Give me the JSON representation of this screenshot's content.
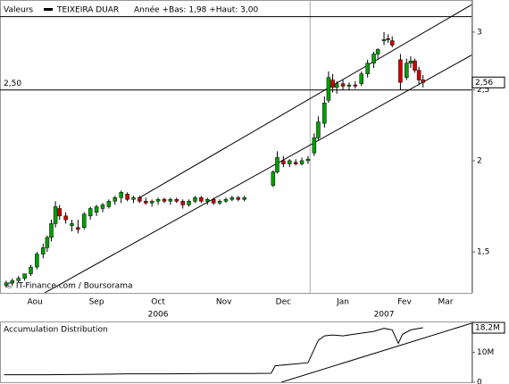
{
  "chart_data": [
    {
      "type": "candlestick",
      "title": "Valeurs",
      "subtitle": "Année +Bas: 1,98 +Haut: 3,00",
      "credit": "© IT-Finance.com / Boursorama",
      "log_y": true,
      "up_color": "#00a000",
      "down_color": "#d00000",
      "xlim": [
        -2,
        227.6
      ],
      "ylim": [
        1.318,
        3.32
      ],
      "yticks": [
        {
          "value": 1.5,
          "label": "1,5"
        },
        2,
        {
          "value": 2.5,
          "label": "2,5"
        },
        3
      ],
      "xticks": [
        {
          "value": 15,
          "label": "Aou"
        },
        {
          "value": 45,
          "label": "Sep"
        },
        {
          "value": 75,
          "label": "Oct"
        },
        {
          "value": 107,
          "label": "Nov"
        },
        {
          "value": 136,
          "label": "Dec"
        },
        {
          "value": 165,
          "label": "Jan"
        },
        {
          "value": 195,
          "label": "Fev"
        },
        {
          "value": 215,
          "label": "Mar"
        }
      ],
      "year_labels": [
        {
          "value": 75,
          "label": "2006"
        },
        {
          "value": 185,
          "label": "2007"
        }
      ],
      "vlines": [
        149
      ],
      "hlines": [
        {
          "value": 2.5,
          "label": "2,50"
        },
        {
          "value": 3.15
        }
      ],
      "last": {
        "value": 2.56,
        "label": "2,56"
      },
      "trendlines": [
        {
          "x": [
            65.4,
            227.6
          ],
          "y": [
            1.776,
            3.27
          ]
        },
        {
          "x": [
            19.7,
            227.6
          ],
          "y": [
            1.318,
            2.79
          ]
        }
      ],
      "series": [
        {
          "name": "TEIXEIRA DUAR",
          "color": "#000000",
          "x": [
            1,
            4,
            7,
            10,
            13,
            16,
            19,
            21,
            23,
            25,
            27,
            30,
            33,
            36,
            39,
            42,
            45,
            48,
            51,
            54,
            57,
            60,
            63,
            66,
            69,
            72,
            75,
            78,
            81,
            84,
            87,
            90,
            93,
            96,
            99,
            102,
            105,
            108,
            111,
            114,
            117,
            131,
            133,
            136,
            139,
            142,
            145,
            148,
            151,
            153,
            156,
            158,
            160,
            162,
            165,
            168,
            171,
            174,
            177,
            180,
            182,
            185,
            187,
            189,
            193,
            196,
            198,
            200,
            202,
            204
          ],
          "open": [
            1.35,
            1.36,
            1.37,
            1.38,
            1.4,
            1.43,
            1.49,
            1.52,
            1.57,
            1.64,
            1.72,
            1.68,
            1.63,
            1.62,
            1.62,
            1.68,
            1.7,
            1.72,
            1.73,
            1.76,
            1.78,
            1.8,
            1.77,
            1.78,
            1.76,
            1.75,
            1.76,
            1.77,
            1.76,
            1.77,
            1.76,
            1.74,
            1.76,
            1.78,
            1.76,
            1.77,
            1.75,
            1.76,
            1.77,
            1.78,
            1.77,
            1.85,
            1.93,
            2.0,
            1.98,
            1.99,
            1.98,
            2.0,
            2.05,
            2.15,
            2.25,
            2.42,
            2.58,
            2.52,
            2.55,
            2.53,
            2.54,
            2.55,
            2.63,
            2.72,
            2.8,
            2.92,
            2.94,
            2.92,
            2.75,
            2.6,
            2.72,
            2.74,
            2.66,
            2.58
          ],
          "high": [
            1.37,
            1.38,
            1.39,
            1.4,
            1.44,
            1.5,
            1.54,
            1.58,
            1.66,
            1.76,
            1.74,
            1.7,
            1.66,
            1.66,
            1.7,
            1.73,
            1.74,
            1.75,
            1.77,
            1.79,
            1.82,
            1.81,
            1.79,
            1.79,
            1.78,
            1.77,
            1.78,
            1.78,
            1.78,
            1.78,
            1.77,
            1.77,
            1.79,
            1.79,
            1.78,
            1.78,
            1.77,
            1.78,
            1.79,
            1.79,
            1.79,
            1.94,
            2.06,
            2.03,
            2.01,
            2.01,
            2.02,
            2.03,
            2.18,
            2.3,
            2.45,
            2.65,
            2.63,
            2.57,
            2.58,
            2.56,
            2.57,
            2.65,
            2.75,
            2.82,
            2.85,
            3.0,
            2.98,
            2.96,
            2.8,
            2.76,
            2.78,
            2.76,
            2.69,
            2.62
          ],
          "low": [
            1.34,
            1.35,
            1.36,
            1.37,
            1.39,
            1.42,
            1.47,
            1.5,
            1.55,
            1.62,
            1.66,
            1.64,
            1.6,
            1.59,
            1.61,
            1.66,
            1.68,
            1.7,
            1.72,
            1.74,
            1.75,
            1.76,
            1.75,
            1.75,
            1.74,
            1.73,
            1.74,
            1.75,
            1.74,
            1.75,
            1.72,
            1.73,
            1.75,
            1.75,
            1.74,
            1.74,
            1.74,
            1.75,
            1.76,
            1.76,
            1.76,
            1.84,
            1.92,
            1.96,
            1.96,
            1.97,
            1.97,
            1.98,
            2.03,
            2.13,
            2.22,
            2.4,
            2.48,
            2.47,
            2.5,
            2.5,
            2.51,
            2.53,
            2.6,
            2.68,
            2.76,
            2.88,
            2.9,
            2.86,
            2.5,
            2.58,
            2.68,
            2.64,
            2.54,
            2.52
          ],
          "close": [
            1.36,
            1.37,
            1.38,
            1.4,
            1.43,
            1.49,
            1.52,
            1.57,
            1.64,
            1.73,
            1.68,
            1.66,
            1.64,
            1.61,
            1.69,
            1.72,
            1.73,
            1.74,
            1.76,
            1.78,
            1.81,
            1.77,
            1.78,
            1.76,
            1.75,
            1.76,
            1.77,
            1.76,
            1.77,
            1.76,
            1.74,
            1.76,
            1.78,
            1.76,
            1.77,
            1.75,
            1.76,
            1.77,
            1.78,
            1.77,
            1.78,
            1.93,
            2.02,
            1.98,
            2.0,
            1.98,
            2.0,
            2.01,
            2.15,
            2.26,
            2.4,
            2.6,
            2.52,
            2.55,
            2.53,
            2.54,
            2.53,
            2.63,
            2.72,
            2.8,
            2.84,
            2.93,
            2.93,
            2.88,
            2.56,
            2.72,
            2.74,
            2.66,
            2.58,
            2.56
          ]
        }
      ]
    },
    {
      "type": "line",
      "title": "Accumulation Distribution",
      "color": "#000000",
      "xlim": [
        -2,
        227.6
      ],
      "ylim": [
        0,
        20300000
      ],
      "yticks": [
        0,
        {
          "value": 10000000,
          "label": "10M"
        }
      ],
      "last": {
        "value": 18200000,
        "label": "18,2M"
      },
      "trendlines": [
        {
          "x": [
            135,
            227.6
          ],
          "y": [
            0,
            19700000
          ]
        }
      ],
      "x": [
        0,
        20,
        40,
        60,
        80,
        100,
        120,
        130,
        132,
        140,
        148,
        151,
        153,
        156,
        160,
        165,
        170,
        175,
        180,
        185,
        189,
        192,
        194,
        198,
        204
      ],
      "values": [
        2500000,
        2500000,
        2600000,
        2800000,
        2800000,
        2900000,
        2900000,
        3000000,
        5500000,
        6000000,
        6500000,
        11000000,
        14000000,
        15500000,
        15800000,
        15500000,
        16000000,
        16500000,
        17000000,
        18000000,
        17500000,
        13000000,
        16000000,
        17500000,
        18200000
      ]
    }
  ]
}
